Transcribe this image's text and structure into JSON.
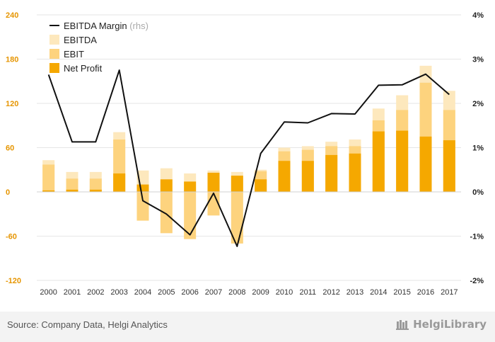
{
  "chart_data": {
    "type": "bar",
    "stacked_overlay": true,
    "categories": [
      "2000",
      "2001",
      "2002",
      "2003",
      "2004",
      "2005",
      "2006",
      "2007",
      "2008",
      "2009",
      "2010",
      "2011",
      "2012",
      "2013",
      "2014",
      "2015",
      "2016",
      "2017"
    ],
    "series": [
      {
        "name": "EBITDA",
        "type": "bar",
        "axis": "left",
        "color": "#fde8bd",
        "values": [
          43,
          27,
          27,
          81,
          29,
          32,
          25,
          29,
          27,
          30,
          60,
          62,
          68,
          71,
          113,
          131,
          171,
          137
        ]
      },
      {
        "name": "EBIT",
        "type": "bar",
        "axis": "left",
        "color": "#fdd37e",
        "values": [
          37,
          18,
          18,
          71,
          -39,
          -56,
          -64,
          -32,
          -70,
          28,
          55,
          57,
          62,
          62,
          97,
          111,
          148,
          111
        ]
      },
      {
        "name": "Net Profit",
        "type": "bar",
        "axis": "left",
        "color": "#f5a800",
        "values": [
          2,
          3,
          3,
          25,
          10,
          17,
          14,
          26,
          22,
          17,
          42,
          42,
          50,
          52,
          82,
          83,
          75,
          70
        ]
      },
      {
        "name": "EBITDA Margin",
        "type": "line",
        "axis": "right",
        "color": "#111111",
        "values": [
          2.65,
          1.13,
          1.13,
          2.75,
          -0.2,
          -0.5,
          -0.97,
          -0.03,
          -1.23,
          0.87,
          1.58,
          1.56,
          1.77,
          1.76,
          2.41,
          2.42,
          2.66,
          2.2
        ]
      }
    ],
    "legend": [
      {
        "label": "EBITDA Margin",
        "note": "(rhs)"
      },
      {
        "label": "EBITDA"
      },
      {
        "label": "EBIT"
      },
      {
        "label": "Net Profit"
      }
    ],
    "legend_position": "top-left",
    "ylim_left": [
      -120,
      240
    ],
    "yticks_left": [
      "240",
      "180",
      "120",
      "60",
      "0",
      "-60",
      "-120"
    ],
    "ylim_right": [
      -2,
      4
    ],
    "yticks_right": [
      "4%",
      "3%",
      "2%",
      "1%",
      "0%",
      "-1%",
      "-2%"
    ],
    "grid": "horizontal",
    "colors": {
      "left_axis": "#e69500",
      "right_axis": "#222222",
      "grid": "#e6e6e6",
      "line": "#111111"
    }
  },
  "footer": {
    "source": "Source: Company Data, Helgi Analytics",
    "brand": "HelgiLibrary"
  }
}
